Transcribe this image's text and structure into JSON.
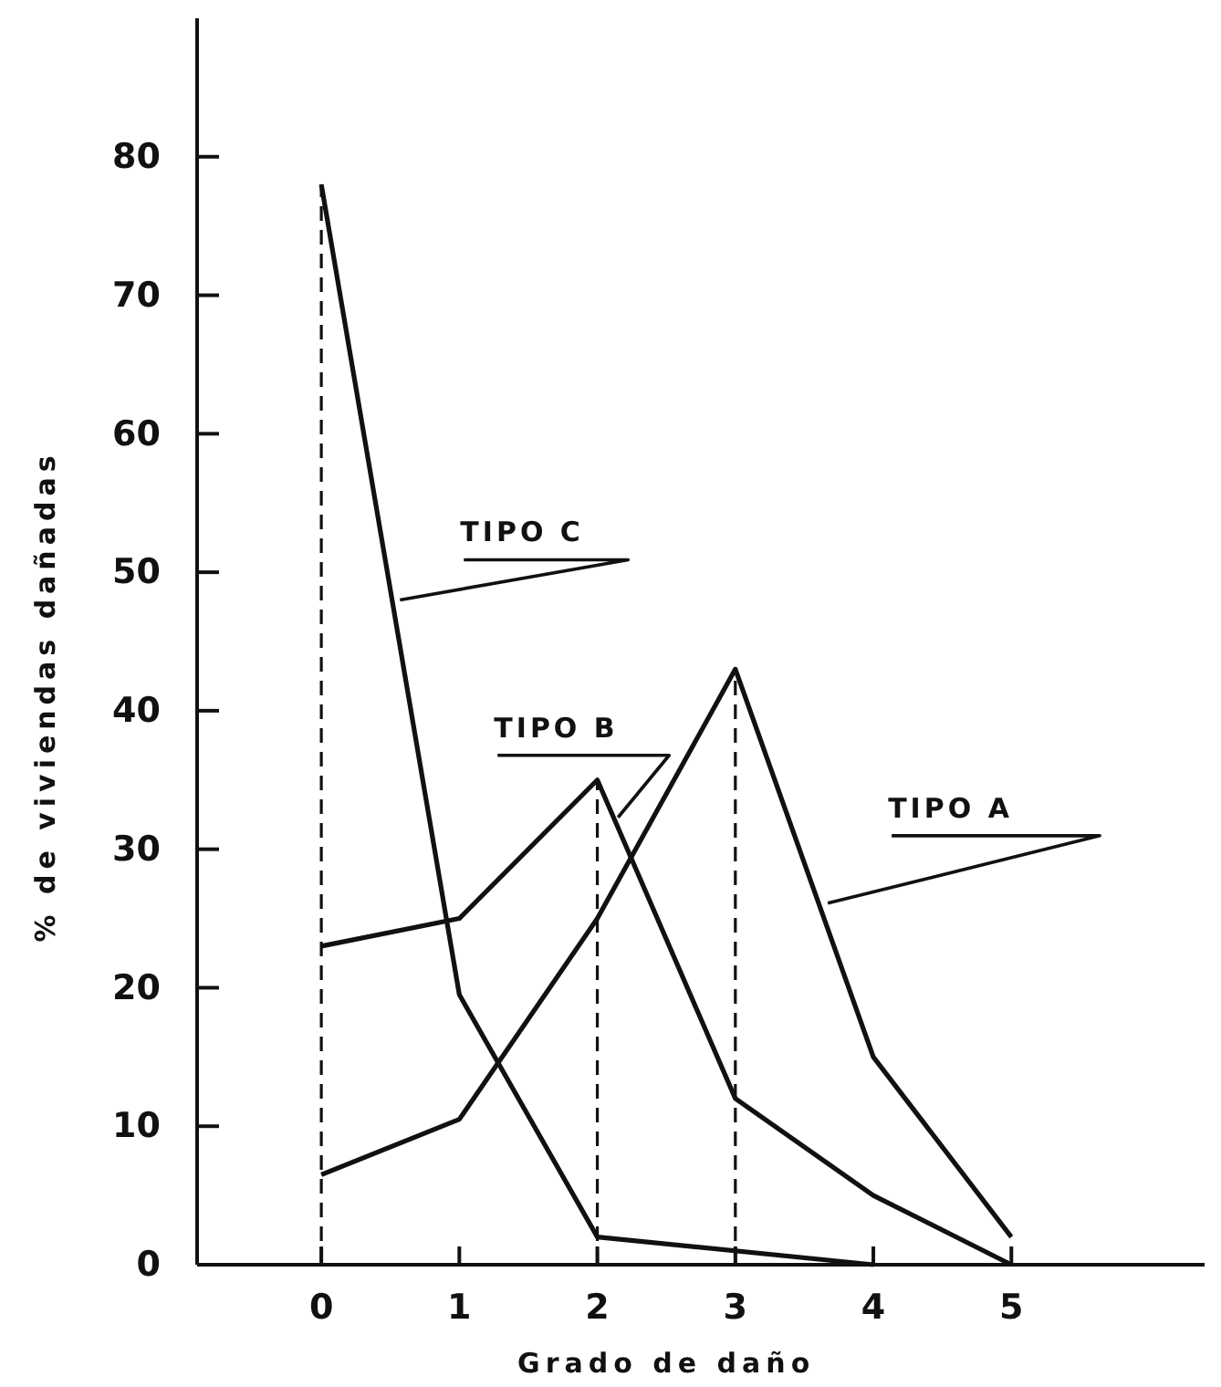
{
  "chart_data": {
    "type": "line",
    "xlabel": "Grado de daño",
    "ylabel": "% de viviendas dañadas",
    "x": [
      0,
      1,
      2,
      3,
      4,
      5
    ],
    "series": [
      {
        "color": "#111111",
        "values": [
          6.5,
          10.5,
          25,
          43,
          15,
          2
        ]
      },
      {
        "color": "#111111",
        "values": [
          23,
          25,
          35,
          12,
          5,
          0
        ]
      },
      {
        "color": "#111111",
        "x": [
          0,
          1,
          2,
          4
        ],
        "values": [
          78,
          19.5,
          2,
          0
        ]
      }
    ],
    "xlim": [
      -0.9,
      6.4
    ],
    "ylim": [
      0,
      90
    ],
    "xticks": [
      0,
      1,
      2,
      3,
      4,
      5
    ],
    "yticks": [
      0,
      10,
      20,
      30,
      40,
      50,
      60,
      70,
      80
    ],
    "ref_lines": [
      {
        "axis": "x",
        "value": 0,
        "line_style": "dashed"
      },
      {
        "axis": "x",
        "value": 2,
        "line_style": "dashed"
      },
      {
        "axis": "x",
        "value": 3,
        "line_style": "dashed"
      }
    ],
    "annotations": [
      {
        "text": "TIPO C",
        "x": 0.57,
        "y": 48
      },
      {
        "text": "TIPO B",
        "x": 2.15,
        "y": 32.3
      },
      {
        "text": "TIPO A",
        "x": 3.67,
        "y": 26.1
      }
    ],
    "line_style": "solid",
    "marker": "none"
  }
}
